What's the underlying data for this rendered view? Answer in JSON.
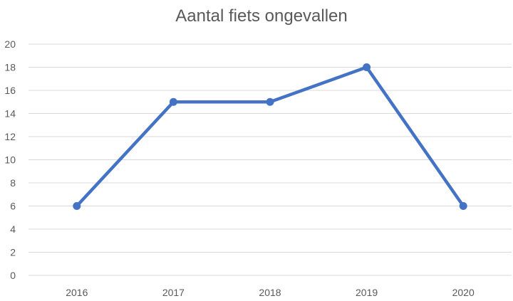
{
  "chart_data": {
    "type": "line",
    "title": "Aantal fiets ongevallen",
    "categories": [
      "2016",
      "2017",
      "2018",
      "2019",
      "2020"
    ],
    "series": [
      {
        "values": [
          6,
          15,
          15,
          18,
          6
        ]
      }
    ],
    "ylim": [
      0,
      20
    ],
    "yticks": [
      "0",
      "2",
      "4",
      "6",
      "8",
      "10",
      "12",
      "14",
      "16",
      "18",
      "20"
    ],
    "grid": true,
    "legend": "none",
    "line_color": "#4472c4"
  }
}
